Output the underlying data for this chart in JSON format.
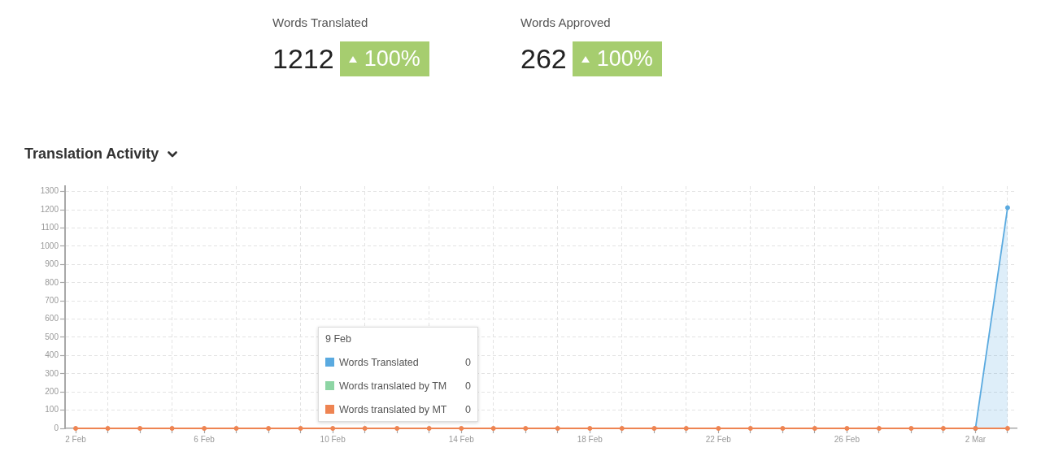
{
  "chart_data": [
    {
      "type": "other",
      "title": "Words Translated",
      "annotations": [
        "1212",
        "100%"
      ]
    },
    {
      "type": "other",
      "title": "Words Approved",
      "annotations": [
        "262",
        "100%"
      ]
    },
    {
      "type": "line",
      "title": "Translation Activity",
      "categories": [
        "2 Feb",
        null,
        null,
        null,
        "6 Feb",
        null,
        null,
        null,
        "10 Feb",
        null,
        null,
        null,
        "14 Feb",
        null,
        null,
        null,
        "18 Feb",
        null,
        null,
        null,
        "22 Feb",
        null,
        null,
        null,
        "26 Feb",
        null,
        null,
        null,
        "2 Mar",
        null
      ],
      "series": [
        {
          "name": "Words Translated",
          "type": "area",
          "color": "#5aaae0",
          "values": [
            null,
            null,
            null,
            null,
            null,
            null,
            null,
            null,
            null,
            null,
            null,
            null,
            null,
            null,
            null,
            null,
            null,
            null,
            null,
            null,
            null,
            null,
            null,
            null,
            null,
            null,
            null,
            null,
            0,
            1212
          ]
        },
        {
          "name": "Words translated by TM",
          "type": "line",
          "color": "#8dd5a4",
          "values": [
            null,
            null,
            null,
            null,
            null,
            null,
            null,
            null,
            null,
            null,
            null,
            null,
            null,
            null,
            null,
            null,
            null,
            null,
            null,
            null,
            null,
            null,
            null,
            null,
            null,
            null,
            null,
            null,
            null,
            null
          ]
        },
        {
          "name": "Words translated by MT",
          "type": "line",
          "color": "#ee8452",
          "values": [
            0,
            0,
            0,
            0,
            0,
            0,
            0,
            0,
            0,
            0,
            0,
            0,
            0,
            0,
            0,
            0,
            0,
            0,
            0,
            0,
            0,
            0,
            0,
            0,
            0,
            0,
            0,
            0,
            0,
            0
          ]
        }
      ],
      "ylim": [
        0,
        1330
      ],
      "yticks": [
        0,
        100,
        200,
        300,
        400,
        500,
        600,
        700,
        800,
        900,
        1000,
        1100,
        1200,
        1300
      ],
      "grid": true,
      "legend": "bottom left",
      "legend_title": "9 Feb",
      "annotations": [
        "0",
        "0",
        "0"
      ],
      "marker": "circle",
      "line_style": "solid"
    }
  ]
}
